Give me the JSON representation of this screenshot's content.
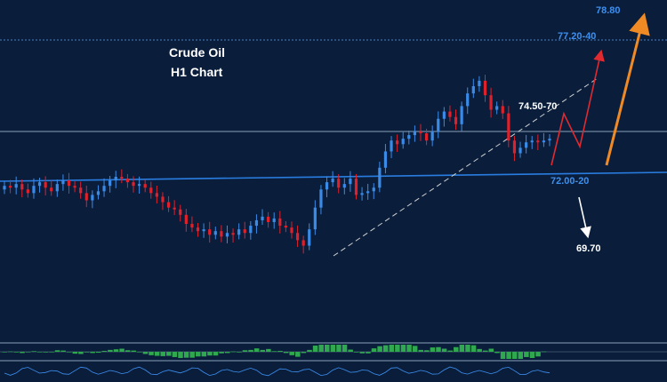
{
  "title_line1": "Crude Oil",
  "title_line2": "H1  Chart",
  "levels": [
    {
      "label": "78.80",
      "color": "#3d8ff0"
    },
    {
      "label": "77.20-40",
      "color": "#3d8ff0"
    },
    {
      "label": "74.50-70",
      "color": "#ffffff"
    },
    {
      "label": "72.00-20",
      "color": "#3d8ff0"
    },
    {
      "label": "69.70",
      "color": "#ffffff"
    }
  ],
  "colors": {
    "background": "#0a1e3c",
    "bull_candle": "#3a8be8",
    "bear_candle": "#e0202a",
    "support_line": "#2a7de0",
    "trend_line": "#d0d0d0",
    "up_arrow": "#f08a24",
    "red_path": "#e02a30",
    "down_arrow": "#ffffff",
    "histogram": "#2fa84f"
  },
  "chart_data": {
    "type": "candlestick",
    "title": "Crude Oil H1  Chart",
    "closes": [
      71.6,
      71.5,
      71.7,
      71.4,
      71.2,
      71.6,
      71.8,
      71.5,
      71.3,
      71.7,
      71.9,
      71.6,
      71.5,
      71.2,
      70.8,
      71.1,
      71.3,
      71.6,
      71.9,
      72.1,
      72.0,
      71.8,
      71.6,
      71.7,
      71.5,
      71.2,
      71.0,
      70.7,
      70.4,
      70.3,
      70.0,
      69.5,
      69.3,
      69.1,
      69.2,
      68.9,
      69.1,
      68.8,
      69.0,
      68.9,
      69.2,
      69.0,
      69.4,
      69.7,
      69.9,
      69.6,
      69.8,
      69.4,
      69.3,
      69.0,
      68.6,
      68.3,
      69.2,
      70.4,
      71.4,
      71.8,
      72.0,
      71.5,
      71.7,
      72.0,
      71.1,
      71.2,
      71.3,
      71.5,
      72.6,
      73.5,
      74.1,
      73.9,
      74.2,
      74.4,
      74.6,
      74.5,
      74.1,
      74.6,
      75.3,
      75.7,
      75.4,
      75.0,
      76.0,
      76.7,
      77.1,
      77.4,
      76.6,
      75.8,
      76.0,
      75.6,
      74.1,
      73.4,
      73.7,
      74.0,
      74.1,
      74.0,
      74.1,
      74.2
    ],
    "levels": [
      "78.80",
      "77.20-40",
      "74.50-70",
      "72.00-20",
      "69.70"
    ]
  }
}
